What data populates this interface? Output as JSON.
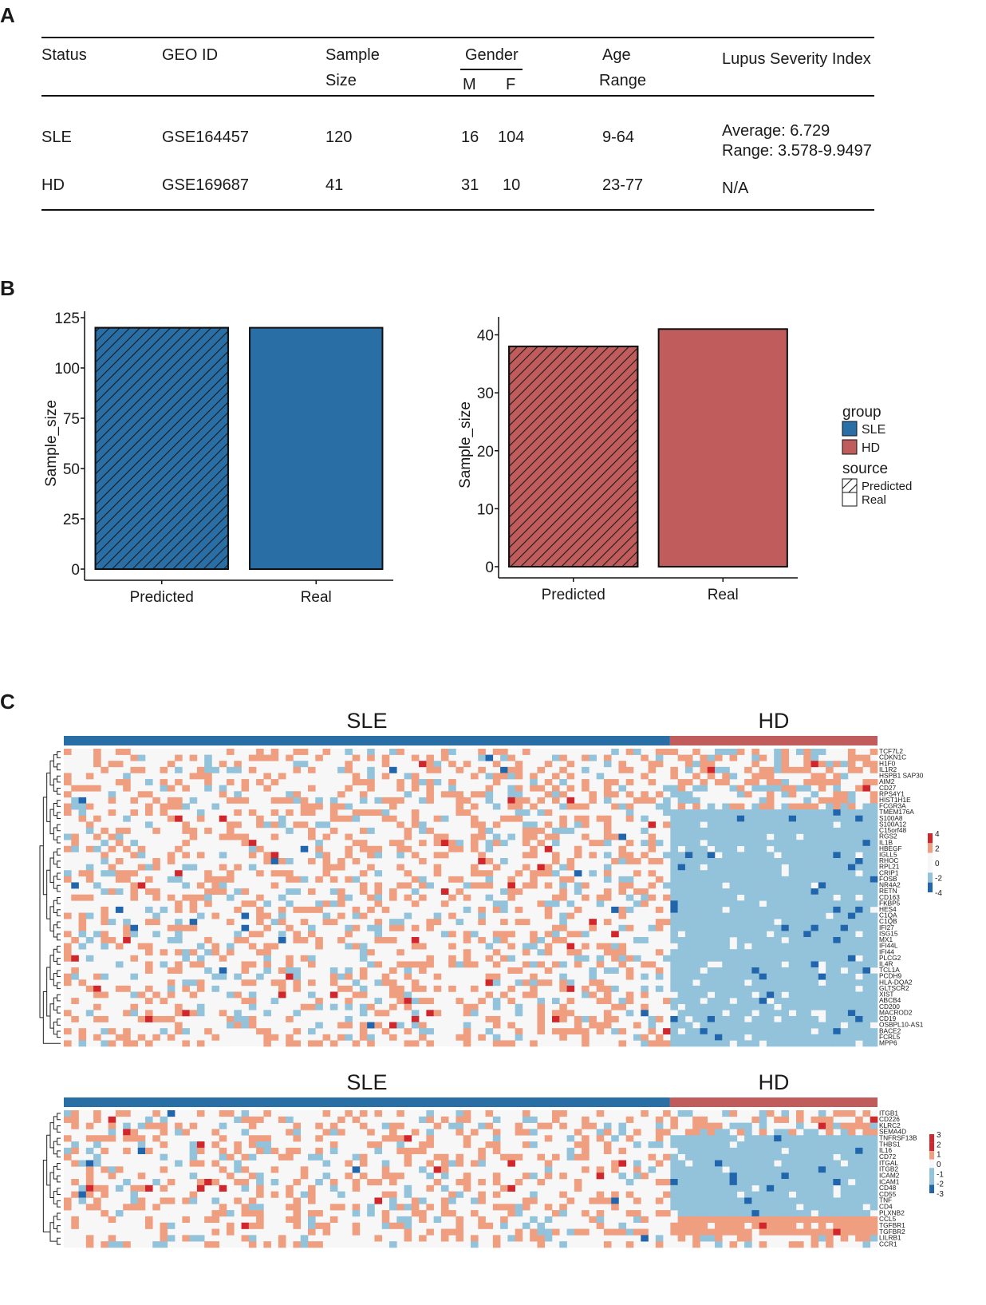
{
  "panels": {
    "a": "A",
    "b": "B",
    "c": "C"
  },
  "table": {
    "headers": {
      "status": "Status",
      "geo": "GEO ID",
      "sample1": "Sample",
      "sample2": "Size",
      "gender": "Gender",
      "m": "M",
      "f": "F",
      "age1": "Age",
      "age2": "Range",
      "lsi": "Lupus Severity Index"
    },
    "rows": [
      {
        "status": "SLE",
        "geo": "GSE164457",
        "size": "120",
        "m": "16",
        "f": "104",
        "age": "9-64",
        "lsi1": "Average: 6.729",
        "lsi2": "Range: 3.578-9.9497"
      },
      {
        "status": "HD",
        "geo": "GSE169687",
        "size": "41",
        "m": "31",
        "f": "10",
        "age": "23-77",
        "lsi1": "N/A",
        "lsi2": ""
      }
    ]
  },
  "colors": {
    "sle": "#2a6ea6",
    "hd": "#c05c5c",
    "low_pos": "#ef9f80",
    "high_pos": "#d0262c",
    "low_neg": "#93c2db",
    "high_neg": "#2166ac",
    "bg": "#f7f7f7"
  },
  "chart_data": [
    {
      "type": "bar",
      "title": "",
      "ylabel": "Sample_size",
      "categories": [
        "Predicted",
        "Real"
      ],
      "values": [
        120,
        120
      ],
      "ylim": [
        0,
        125
      ],
      "yticks": [
        0,
        25,
        50,
        75,
        100,
        125
      ],
      "hatched": [
        true,
        false
      ],
      "color": "#2a6ea6"
    },
    {
      "type": "bar",
      "title": "",
      "ylabel": "Sample_size",
      "categories": [
        "Predicted",
        "Real"
      ],
      "values": [
        38,
        41
      ],
      "ylim": [
        0,
        42
      ],
      "yticks": [
        0,
        10,
        20,
        30,
        40
      ],
      "hatched": [
        true,
        false
      ],
      "color": "#c05c5c"
    },
    {
      "type": "heatmap",
      "groups": [
        "SLE",
        "HD"
      ],
      "genes": [
        "TCF7L2",
        "CDKN1C",
        "H1F0",
        "IL1R2",
        "HSPB1 SAP30",
        "AIM2",
        "CD27",
        "RPS4Y1",
        "HIST1H1E",
        "FCGR3A",
        "TMEM176A",
        "S100A8",
        "S100A12",
        "C15orf48",
        "RGS2",
        "IL1B",
        "HBEGF",
        "IGLL5",
        "RHOC",
        "RPL21",
        "CRIP1",
        "FOSB",
        "NR4A2",
        "RETN",
        "CD163",
        "FKBP5",
        "HES4",
        "C1QA",
        "C1QB",
        "IFI27",
        "ISG15",
        "MX1",
        "IFI44L",
        "IFI44",
        "PLCG2",
        "IL4R",
        "TCL1A",
        "PCDH9",
        "HLA-DQA2",
        "GLTSCR2",
        "XIST",
        "ABCB4",
        "CD200",
        "MACROD2",
        "CD19",
        "OSBPL10-AS1",
        "BACE2",
        "FCRL5",
        "MPP6"
      ],
      "legend_ticks": [
        "4",
        "2",
        "0",
        "-2",
        "-4"
      ]
    },
    {
      "type": "heatmap",
      "groups": [
        "SLE",
        "HD"
      ],
      "genes": [
        "ITGB1",
        "CD226",
        "KLRC2",
        "SEMA4D",
        "TNFRSF13B",
        "THBS1",
        "IL16",
        "CD72",
        "ITGAL",
        "ITGB2",
        "ICAM2",
        "ICAM1",
        "CD48",
        "CD55",
        "TNF",
        "CD4",
        "PLXNB2",
        "CCL5",
        "TGFBR1",
        "TGFBR2",
        "LILRB1",
        "CCR1"
      ],
      "legend_ticks": [
        "3",
        "2",
        "1",
        "0",
        "-1",
        "-2",
        "-3"
      ]
    }
  ],
  "legend": {
    "group_title": "group",
    "group_items": [
      "SLE",
      "HD"
    ],
    "source_title": "source",
    "source_items": [
      "Predicted",
      "Real"
    ]
  }
}
